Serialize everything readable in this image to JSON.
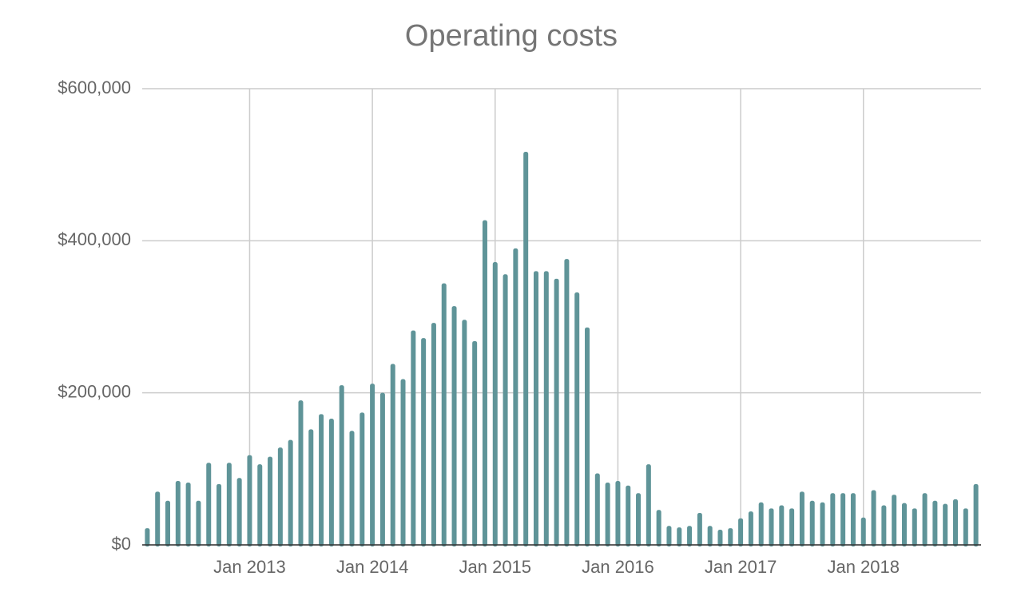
{
  "chart_data": {
    "type": "bar",
    "title": "Operating costs",
    "x": [
      "2012-03",
      "2012-04",
      "2012-05",
      "2012-06",
      "2012-07",
      "2012-08",
      "2012-09",
      "2012-10",
      "2012-11",
      "2012-12",
      "2013-01",
      "2013-02",
      "2013-03",
      "2013-04",
      "2013-05",
      "2013-06",
      "2013-07",
      "2013-08",
      "2013-09",
      "2013-10",
      "2013-11",
      "2013-12",
      "2014-01",
      "2014-02",
      "2014-03",
      "2014-04",
      "2014-05",
      "2014-06",
      "2014-07",
      "2014-08",
      "2014-09",
      "2014-10",
      "2014-11",
      "2014-12",
      "2015-01",
      "2015-02",
      "2015-03",
      "2015-04",
      "2015-05",
      "2015-06",
      "2015-07",
      "2015-08",
      "2015-09",
      "2015-10",
      "2015-11",
      "2015-12",
      "2016-01",
      "2016-02",
      "2016-03",
      "2016-04",
      "2016-05",
      "2016-06",
      "2016-07",
      "2016-08",
      "2016-09",
      "2016-10",
      "2016-11",
      "2016-12",
      "2017-01",
      "2017-02",
      "2017-03",
      "2017-04",
      "2017-05",
      "2017-06",
      "2017-07",
      "2017-08",
      "2017-09",
      "2017-10",
      "2017-11",
      "2017-12",
      "2018-01",
      "2018-02",
      "2018-03",
      "2018-04",
      "2018-05",
      "2018-06",
      "2018-07",
      "2018-08",
      "2018-09",
      "2018-10",
      "2018-11",
      "2018-12"
    ],
    "values": [
      22000,
      70000,
      58000,
      84000,
      82000,
      58000,
      108000,
      80000,
      108000,
      88000,
      118000,
      106000,
      116000,
      128000,
      138000,
      190000,
      152000,
      172000,
      166000,
      210000,
      150000,
      174000,
      212000,
      200000,
      238000,
      218000,
      282000,
      272000,
      292000,
      344000,
      314000,
      296000,
      268000,
      427000,
      372000,
      356000,
      390000,
      517000,
      360000,
      360000,
      350000,
      376000,
      332000,
      286000,
      94000,
      82000,
      84000,
      78000,
      68000,
      106000,
      46000,
      25000,
      23000,
      25000,
      42000,
      25000,
      20000,
      22000,
      35000,
      44000,
      56000,
      48000,
      52000,
      48000,
      70000,
      58000,
      56000,
      68000,
      68000,
      68000,
      36000,
      72000,
      52000,
      66000,
      55000,
      48000,
      68000,
      58000,
      54000,
      60000,
      48000,
      80000
    ],
    "color": "#5f9498",
    "ylim": [
      0,
      600000
    ],
    "yticks": [
      {
        "value": 0,
        "label": "$0"
      },
      {
        "value": 200000,
        "label": "$200,000"
      },
      {
        "value": 400000,
        "label": "$400,000"
      },
      {
        "value": 600000,
        "label": "$600,000"
      }
    ],
    "xticks": [
      {
        "value": "2013-01",
        "label": "Jan 2013"
      },
      {
        "value": "2014-01",
        "label": "Jan 2014"
      },
      {
        "value": "2015-01",
        "label": "Jan 2015"
      },
      {
        "value": "2016-01",
        "label": "Jan 2016"
      },
      {
        "value": "2017-01",
        "label": "Jan 2017"
      },
      {
        "value": "2018-01",
        "label": "Jan 2018"
      }
    ],
    "grid": true
  }
}
